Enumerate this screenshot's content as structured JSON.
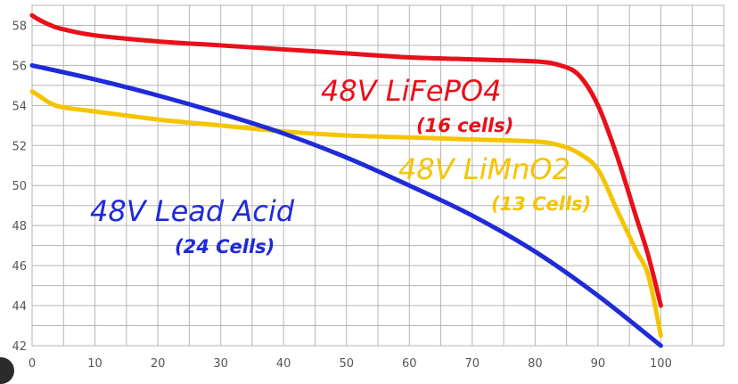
{
  "chart_data": {
    "type": "line",
    "title": "",
    "xlabel": "",
    "ylabel": "",
    "xlim": [
      0,
      110
    ],
    "ylim": [
      42,
      59
    ],
    "grid": true,
    "legend": "none",
    "x_ticks": [
      0,
      10,
      20,
      30,
      40,
      50,
      60,
      70,
      80,
      90,
      100
    ],
    "y_ticks": [
      42,
      44,
      46,
      48,
      50,
      52,
      54,
      56,
      58
    ],
    "series": [
      {
        "key": "lifepo4",
        "name": "48V LiFePO4",
        "sub": "(16 cells)",
        "color": "#e8101a",
        "x": [
          0,
          1,
          3,
          5,
          10,
          20,
          30,
          40,
          50,
          60,
          70,
          80,
          84,
          87,
          90,
          93,
          96,
          98,
          100
        ],
        "y": [
          58.5,
          58.3,
          58.0,
          57.8,
          57.5,
          57.2,
          57.0,
          56.8,
          56.6,
          56.4,
          56.3,
          56.2,
          56.0,
          55.5,
          54.0,
          51.5,
          48.5,
          46.5,
          44.0
        ]
      },
      {
        "key": "limno2",
        "name": "48V LiMnO2",
        "sub": "(13 Cells)",
        "color": "#f5c400",
        "x": [
          0,
          1,
          3,
          5,
          10,
          20,
          30,
          40,
          50,
          60,
          70,
          80,
          84,
          87,
          90,
          93,
          96,
          98,
          100
        ],
        "y": [
          54.7,
          54.5,
          54.1,
          53.9,
          53.7,
          53.3,
          53.0,
          52.7,
          52.5,
          52.4,
          52.3,
          52.2,
          52.0,
          51.6,
          50.8,
          48.8,
          46.8,
          45.5,
          42.5
        ]
      },
      {
        "key": "lead",
        "name": "48V Lead Acid",
        "sub": "(24 Cells)",
        "color": "#1f2ad8",
        "x": [
          0,
          10,
          20,
          30,
          40,
          50,
          60,
          70,
          80,
          90,
          100
        ],
        "y": [
          56.0,
          55.3,
          54.5,
          53.6,
          52.6,
          51.4,
          50.0,
          48.5,
          46.7,
          44.5,
          42.0
        ]
      }
    ]
  }
}
